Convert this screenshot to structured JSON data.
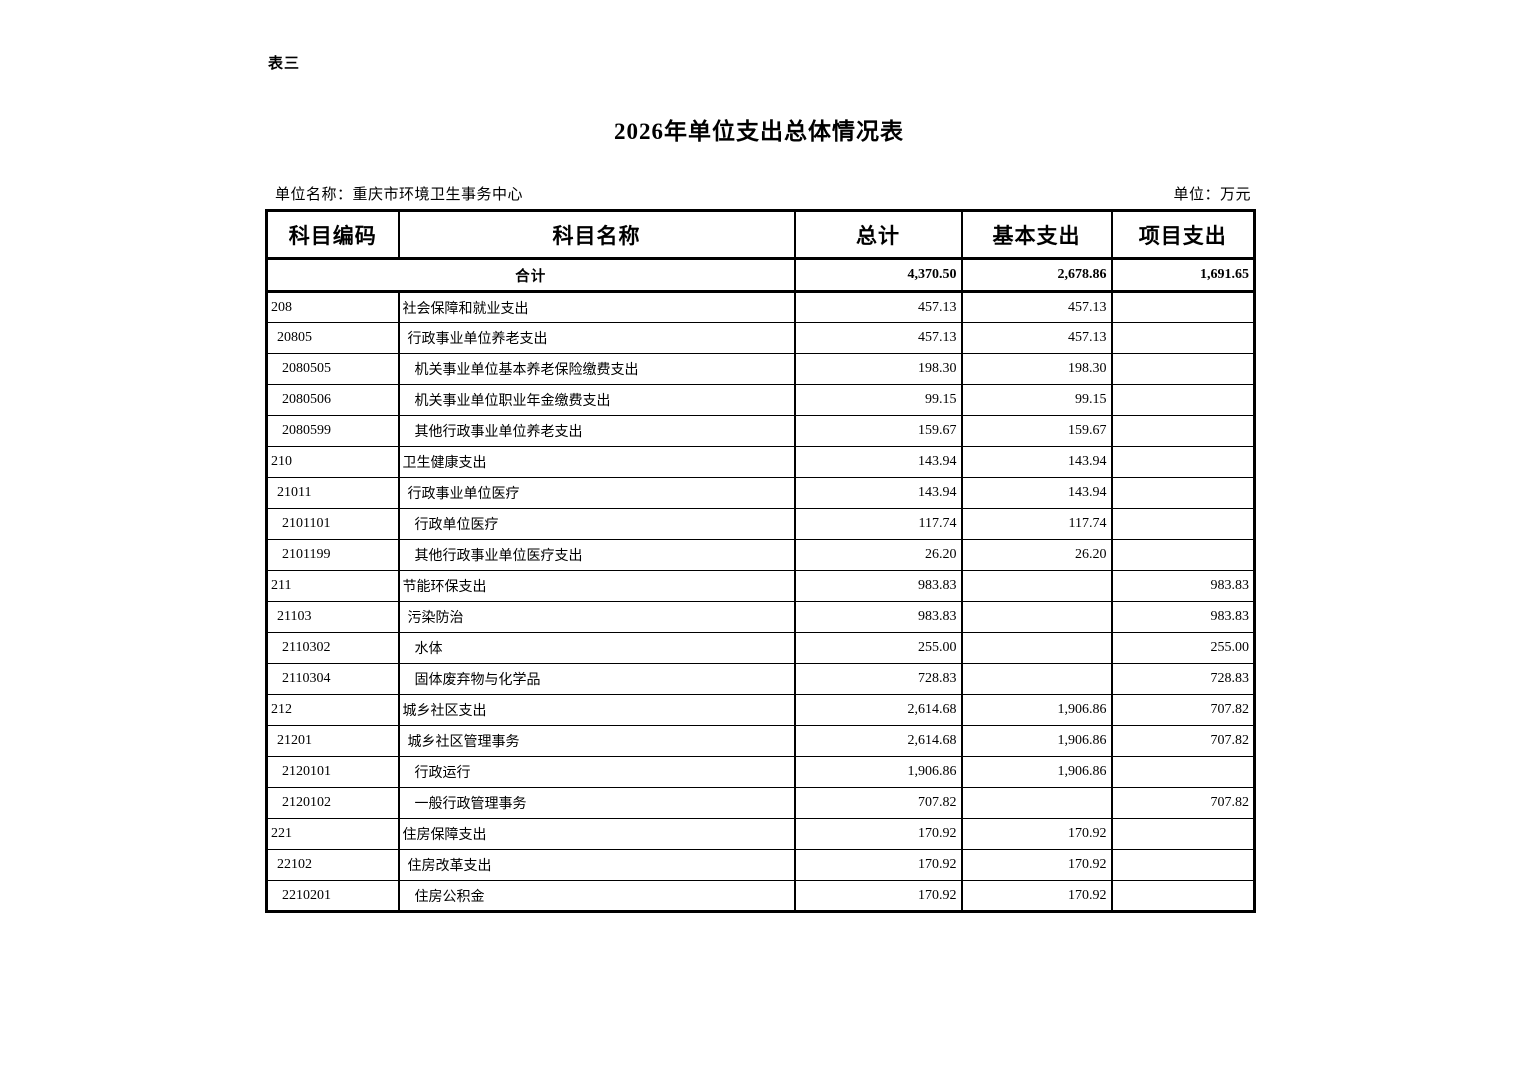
{
  "page": {
    "doc_label": "表三",
    "title": "2026年单位支出总体情况表",
    "unit_name_line": "单位名称：重庆市环境卫生事务中心",
    "unit_measure_line": "单位：万元"
  },
  "table": {
    "headers": [
      "科目编码",
      "科目名称",
      "总计",
      "基本支出",
      "项目支出"
    ],
    "total_row": {
      "name": "合计",
      "total": "4,370.50",
      "basic": "2,678.86",
      "project": "1,691.65"
    },
    "rows": [
      {
        "code": "208",
        "name": "社会保障和就业支出",
        "total": "457.13",
        "basic": "457.13",
        "project": "",
        "level": 1
      },
      {
        "code": "20805",
        "name": "行政事业单位养老支出",
        "total": "457.13",
        "basic": "457.13",
        "project": "",
        "level": 2
      },
      {
        "code": "2080505",
        "name": "机关事业单位基本养老保险缴费支出",
        "total": "198.30",
        "basic": "198.30",
        "project": "",
        "level": 3
      },
      {
        "code": "2080506",
        "name": "机关事业单位职业年金缴费支出",
        "total": "99.15",
        "basic": "99.15",
        "project": "",
        "level": 3
      },
      {
        "code": "2080599",
        "name": "其他行政事业单位养老支出",
        "total": "159.67",
        "basic": "159.67",
        "project": "",
        "level": 3
      },
      {
        "code": "210",
        "name": "卫生健康支出",
        "total": "143.94",
        "basic": "143.94",
        "project": "",
        "level": 1
      },
      {
        "code": "21011",
        "name": "行政事业单位医疗",
        "total": "143.94",
        "basic": "143.94",
        "project": "",
        "level": 2
      },
      {
        "code": "2101101",
        "name": "行政单位医疗",
        "total": "117.74",
        "basic": "117.74",
        "project": "",
        "level": 3
      },
      {
        "code": "2101199",
        "name": "其他行政事业单位医疗支出",
        "total": "26.20",
        "basic": "26.20",
        "project": "",
        "level": 3
      },
      {
        "code": "211",
        "name": "节能环保支出",
        "total": "983.83",
        "basic": "",
        "project": "983.83",
        "level": 1
      },
      {
        "code": "21103",
        "name": "污染防治",
        "total": "983.83",
        "basic": "",
        "project": "983.83",
        "level": 2
      },
      {
        "code": "2110302",
        "name": "水体",
        "total": "255.00",
        "basic": "",
        "project": "255.00",
        "level": 3
      },
      {
        "code": "2110304",
        "name": "固体废弃物与化学品",
        "total": "728.83",
        "basic": "",
        "project": "728.83",
        "level": 3
      },
      {
        "code": "212",
        "name": "城乡社区支出",
        "total": "2,614.68",
        "basic": "1,906.86",
        "project": "707.82",
        "level": 1
      },
      {
        "code": "21201",
        "name": "城乡社区管理事务",
        "total": "2,614.68",
        "basic": "1,906.86",
        "project": "707.82",
        "level": 2
      },
      {
        "code": "2120101",
        "name": "行政运行",
        "total": "1,906.86",
        "basic": "1,906.86",
        "project": "",
        "level": 3
      },
      {
        "code": "2120102",
        "name": "一般行政管理事务",
        "total": "707.82",
        "basic": "",
        "project": "707.82",
        "level": 3
      },
      {
        "code": "221",
        "name": "住房保障支出",
        "total": "170.92",
        "basic": "170.92",
        "project": "",
        "level": 1
      },
      {
        "code": "22102",
        "name": "住房改革支出",
        "total": "170.92",
        "basic": "170.92",
        "project": "",
        "level": 2
      },
      {
        "code": "2210201",
        "name": "住房公积金",
        "total": "170.92",
        "basic": "170.92",
        "project": "",
        "level": 3
      }
    ]
  }
}
